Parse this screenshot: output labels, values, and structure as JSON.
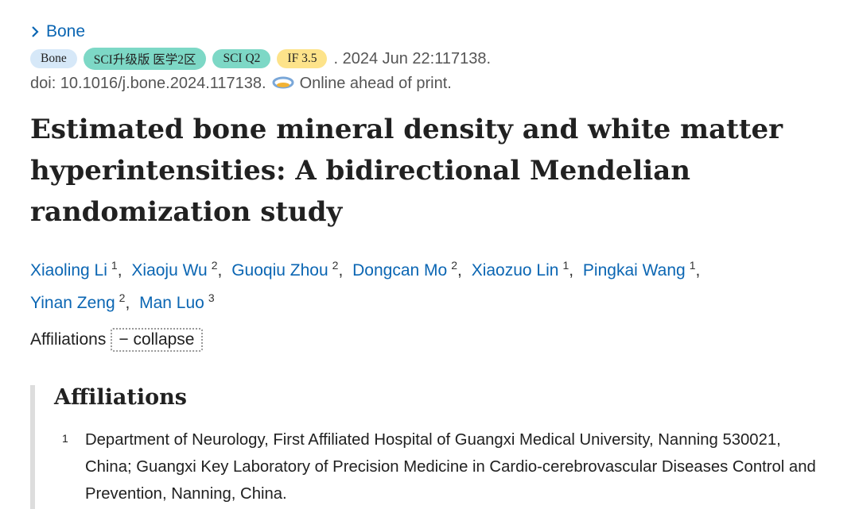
{
  "journal": {
    "name": "Bone"
  },
  "badges": [
    "Bone",
    "SCI升级版 医学2区",
    "SCI Q2",
    "IF 3.5"
  ],
  "citation": ". 2024 Jun 22:117138.",
  "doi": "doi: 10.1016/j.bone.2024.117138.",
  "status": "Online ahead of print.",
  "title": "Estimated bone mineral density and white matter hyperintensities: A bidirectional Mendelian randomization study",
  "authors": [
    {
      "name": "Xiaoling Li",
      "affiliation": 1,
      "separator": ","
    },
    {
      "name": "Xiaoju Wu",
      "affiliation": 2,
      "separator": ","
    },
    {
      "name": "Guoqiu Zhou",
      "affiliation": 2,
      "separator": ","
    },
    {
      "name": "Dongcan Mo",
      "affiliation": 2,
      "separator": ","
    },
    {
      "name": "Xiaozuo Lin",
      "affiliation": 1,
      "separator": ","
    },
    {
      "name": "Pingkai Wang",
      "affiliation": 1,
      "separator": ","
    },
    {
      "name": "Yinan Zeng",
      "affiliation": 2,
      "separator": ","
    },
    {
      "name": "Man Luo",
      "affiliation": 3
    }
  ],
  "affiliations_toggle": {
    "label": "Affiliations",
    "button": "− collapse"
  },
  "affiliations": {
    "heading": "Affiliations",
    "items": [
      {
        "number": 1,
        "text": "Department of Neurology, First Affiliated Hospital of Guangxi Medical University, Nanning 530021, China; Guangxi Key Laboratory of Precision Medicine in Cardio-cerebrovascular Diseases Control and Prevention, Nanning, China."
      }
    ]
  }
}
